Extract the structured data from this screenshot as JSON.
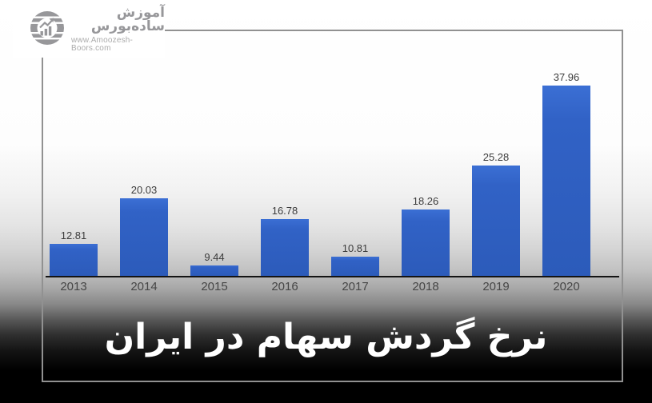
{
  "logo": {
    "brand": "آموزش ساده‌بورس",
    "url": "www.Amoozesh-Boors.com",
    "icon": "globe-growth-chart-icon"
  },
  "banner": {
    "title": "نرخ گردش سهام در ایران"
  },
  "chart_data": {
    "type": "bar",
    "title": "نرخ گردش سهام در ایران",
    "categories": [
      "2013",
      "2014",
      "2015",
      "2016",
      "2017",
      "2018",
      "2019",
      "2020"
    ],
    "values": [
      12.81,
      20.03,
      9.44,
      16.78,
      10.81,
      18.26,
      25.28,
      37.96
    ],
    "value_labels": [
      "12.81",
      "20.03",
      "9.44",
      "16.78",
      "10.81",
      "18.26",
      "25.28",
      "37.96"
    ],
    "xlabel": "",
    "ylabel": "",
    "ylim": [
      7.8,
      37.96
    ],
    "grid": false,
    "legend": false,
    "value_labels_shown": true
  },
  "colors": {
    "bar": "#3162c6",
    "bar_top": "#3b6fd4",
    "axis": "#141414",
    "frame": "#919191",
    "value_label": "#3c3c3c",
    "category_label": "#464646",
    "title_text": "#ffffff",
    "logo_gray": "#97979a"
  }
}
